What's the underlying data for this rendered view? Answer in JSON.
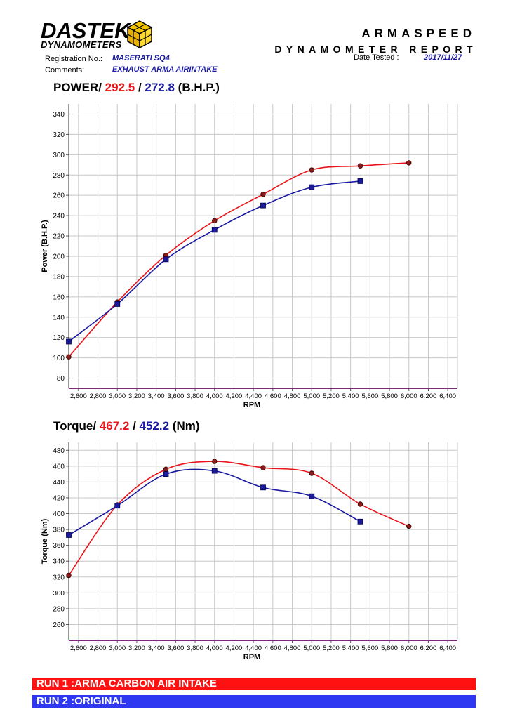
{
  "header": {
    "logo_line1": "DASTEK",
    "logo_line2": "DYNAMOMETERS",
    "company": "ARMASPEED",
    "report_title": "DYNAMOMETER REPORT",
    "registration_label": "Registration No.:",
    "registration_value": "MASERATI SQ4",
    "comments_label": "Comments:",
    "comments_value": "EXHAUST ARMA AIRINTAKE",
    "date_label": "Date Tested :",
    "date_value": "2017/11/27"
  },
  "colors": {
    "run1": "#e8141a",
    "run2": "#1a1aa0",
    "run1_legend": "#ff1111",
    "run2_legend": "#2d38f0",
    "grid": "#c8c8c8",
    "baseline": "#7b2a7b"
  },
  "power_title": {
    "prefix": "POWER/ ",
    "run1_peak": "292.5",
    "sep": " / ",
    "run2_peak": "272.8",
    "suffix": " (B.H.P.)"
  },
  "torque_title": {
    "prefix": "Torque/ ",
    "run1_peak": "467.2",
    "sep": " / ",
    "run2_peak": "452.2",
    "suffix": " (Nm)"
  },
  "legend": {
    "run1": "RUN 1 :ARMA CARBON AIR INTAKE",
    "run2": "RUN 2 :ORIGINAL"
  },
  "chart_data": [
    {
      "type": "line",
      "ylabel": "Power (B.H.P.)",
      "xlabel": "RPM",
      "xlim": [
        2500,
        6500
      ],
      "ylim": [
        70,
        350
      ],
      "yticks": [
        80,
        100,
        120,
        140,
        160,
        180,
        200,
        220,
        240,
        260,
        280,
        300,
        320,
        340
      ],
      "xticks": [
        2600,
        2800,
        3000,
        3200,
        3400,
        3600,
        3800,
        4000,
        4200,
        4400,
        4600,
        4800,
        5000,
        5200,
        5400,
        5600,
        5800,
        6000,
        6200,
        6400
      ],
      "xtick_labels": [
        "2,600",
        "2,800",
        "3,000",
        "3,200",
        "3,400",
        "3,600",
        "3,800",
        "4,000",
        "4,200",
        "4,400",
        "4,600",
        "4,800",
        "5,000",
        "5,200",
        "5,400",
        "5,600",
        "5,800",
        "6,000",
        "6,200",
        "6,400"
      ],
      "grid": true,
      "series": [
        {
          "name": "RUN 1 :ARMA CARBON AIR INTAKE",
          "marker": "circle",
          "x": [
            2500,
            3000,
            3500,
            4000,
            4500,
            5000,
            5500,
            6000
          ],
          "y": [
            101,
            155,
            201,
            235,
            261,
            285,
            289,
            292
          ]
        },
        {
          "name": "RUN 2 :ORIGINAL",
          "marker": "square",
          "x": [
            2500,
            3000,
            3500,
            4000,
            4500,
            5000,
            5500
          ],
          "y": [
            116,
            153,
            197,
            226,
            250,
            268,
            274
          ]
        }
      ]
    },
    {
      "type": "line",
      "ylabel": "Torque (Nm)",
      "xlabel": "RPM",
      "xlim": [
        2500,
        6500
      ],
      "ylim": [
        240,
        490
      ],
      "yticks": [
        260,
        280,
        300,
        320,
        340,
        360,
        380,
        400,
        420,
        440,
        460,
        480
      ],
      "xticks": [
        2600,
        2800,
        3000,
        3200,
        3400,
        3600,
        3800,
        4000,
        4200,
        4400,
        4600,
        4800,
        5000,
        5200,
        5400,
        5600,
        5800,
        6000,
        6200,
        6400
      ],
      "xtick_labels": [
        "2,600",
        "2,800",
        "3,000",
        "3,200",
        "3,400",
        "3,600",
        "3,800",
        "4,000",
        "4,200",
        "4,400",
        "4,600",
        "4,800",
        "5,000",
        "5,200",
        "5,400",
        "5,600",
        "5,800",
        "6,000",
        "6,200",
        "6,400"
      ],
      "grid": true,
      "series": [
        {
          "name": "RUN 1 :ARMA CARBON AIR INTAKE",
          "marker": "circle",
          "x": [
            2500,
            3000,
            3500,
            4000,
            4500,
            5000,
            5500,
            6000
          ],
          "y": [
            322,
            411,
            456,
            466,
            458,
            451,
            412,
            384
          ]
        },
        {
          "name": "RUN 2 :ORIGINAL",
          "marker": "square",
          "x": [
            2500,
            3000,
            3500,
            4000,
            4500,
            5000,
            5500
          ],
          "y": [
            373,
            410,
            450,
            454,
            433,
            422,
            390
          ]
        }
      ]
    }
  ]
}
